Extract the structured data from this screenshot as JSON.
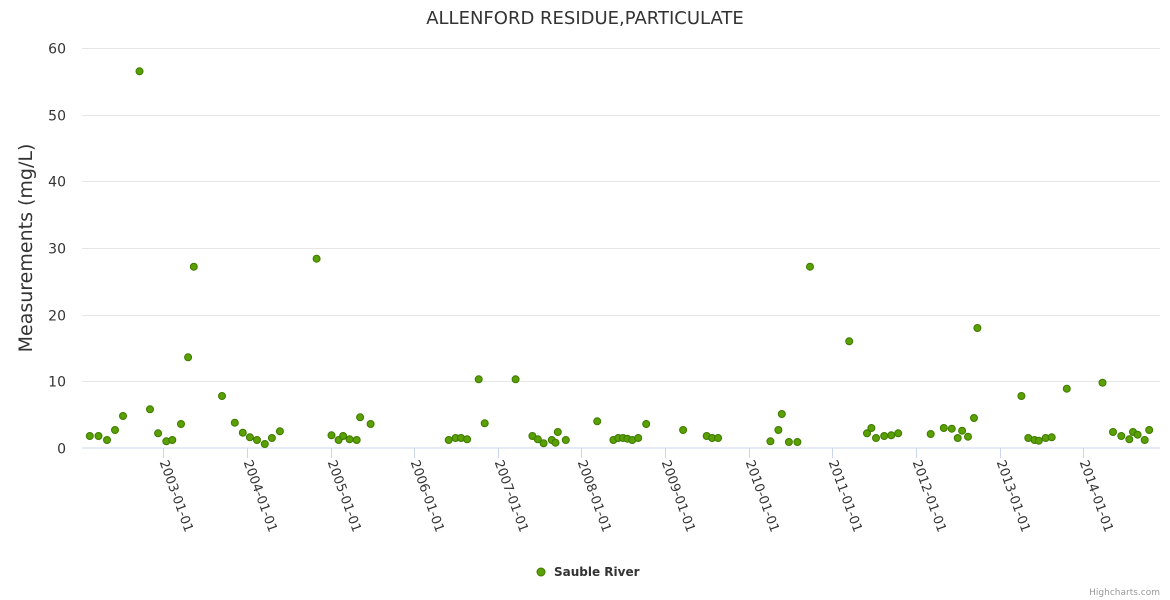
{
  "chart_data": {
    "type": "scatter",
    "title": "ALLENFORD RESIDUE,PARTICULATE",
    "xlabel": "",
    "ylabel": "Measurements (mg/L)",
    "ylim": [
      0,
      60
    ],
    "yticks": [
      0,
      10,
      20,
      30,
      40,
      50,
      60
    ],
    "xlim": [
      "2002-01-12",
      "2014-12-01"
    ],
    "xticks": [
      "2003-01-01",
      "2004-01-01",
      "2005-01-01",
      "2006-01-01",
      "2007-01-01",
      "2008-01-01",
      "2009-01-01",
      "2010-01-01",
      "2011-01-01",
      "2012-01-01",
      "2013-01-01",
      "2014-01-01"
    ],
    "series": [
      {
        "name": "Sauble River",
        "color": "#5aa000",
        "points": [
          [
            "2002-02-15",
            1.8
          ],
          [
            "2002-03-25",
            1.8
          ],
          [
            "2002-05-01",
            1.2
          ],
          [
            "2002-06-05",
            2.7
          ],
          [
            "2002-07-10",
            4.8
          ],
          [
            "2002-09-20",
            56.5
          ],
          [
            "2002-11-05",
            5.8
          ],
          [
            "2002-12-10",
            2.2
          ],
          [
            "2003-01-15",
            1.0
          ],
          [
            "2003-02-10",
            1.2
          ],
          [
            "2003-03-20",
            3.6
          ],
          [
            "2003-04-20",
            13.6
          ],
          [
            "2003-05-15",
            27.2
          ],
          [
            "2003-09-15",
            7.8
          ],
          [
            "2003-11-10",
            3.8
          ],
          [
            "2003-12-15",
            2.3
          ],
          [
            "2004-01-15",
            1.6
          ],
          [
            "2004-02-15",
            1.2
          ],
          [
            "2004-03-20",
            0.6
          ],
          [
            "2004-04-20",
            1.5
          ],
          [
            "2004-05-25",
            2.5
          ],
          [
            "2004-11-01",
            28.4
          ],
          [
            "2005-01-05",
            1.9
          ],
          [
            "2005-02-05",
            1.2
          ],
          [
            "2005-02-25",
            1.8
          ],
          [
            "2005-03-25",
            1.3
          ],
          [
            "2005-04-25",
            1.2
          ],
          [
            "2005-05-10",
            4.6
          ],
          [
            "2005-06-25",
            3.6
          ],
          [
            "2006-06-01",
            1.2
          ],
          [
            "2006-07-01",
            1.5
          ],
          [
            "2006-07-25",
            1.5
          ],
          [
            "2006-08-20",
            1.3
          ],
          [
            "2006-10-10",
            10.3
          ],
          [
            "2006-11-05",
            3.7
          ],
          [
            "2007-03-20",
            10.3
          ],
          [
            "2007-06-01",
            1.8
          ],
          [
            "2007-06-25",
            1.3
          ],
          [
            "2007-07-20",
            0.7
          ],
          [
            "2007-08-25",
            1.2
          ],
          [
            "2007-09-10",
            0.8
          ],
          [
            "2007-09-20",
            2.4
          ],
          [
            "2007-10-25",
            1.2
          ],
          [
            "2008-03-10",
            4.0
          ],
          [
            "2008-05-20",
            1.2
          ],
          [
            "2008-06-10",
            1.5
          ],
          [
            "2008-07-01",
            1.5
          ],
          [
            "2008-07-20",
            1.4
          ],
          [
            "2008-08-10",
            1.2
          ],
          [
            "2008-09-05",
            1.5
          ],
          [
            "2008-10-10",
            3.6
          ],
          [
            "2009-03-20",
            2.7
          ],
          [
            "2009-07-01",
            1.8
          ],
          [
            "2009-07-25",
            1.5
          ],
          [
            "2009-08-20",
            1.5
          ],
          [
            "2010-04-05",
            1.0
          ],
          [
            "2010-05-10",
            2.7
          ],
          [
            "2010-05-25",
            5.1
          ],
          [
            "2010-06-25",
            0.9
          ],
          [
            "2010-08-01",
            0.9
          ],
          [
            "2010-09-25",
            27.2
          ],
          [
            "2011-03-15",
            16.0
          ],
          [
            "2011-06-01",
            2.2
          ],
          [
            "2011-06-20",
            3.0
          ],
          [
            "2011-07-10",
            1.5
          ],
          [
            "2011-08-15",
            1.8
          ],
          [
            "2011-09-15",
            1.9
          ],
          [
            "2011-10-15",
            2.2
          ],
          [
            "2012-03-05",
            2.1
          ],
          [
            "2012-05-01",
            3.0
          ],
          [
            "2012-06-05",
            2.9
          ],
          [
            "2012-07-01",
            1.5
          ],
          [
            "2012-07-20",
            2.6
          ],
          [
            "2012-08-15",
            1.7
          ],
          [
            "2012-09-10",
            4.5
          ],
          [
            "2012-09-25",
            18.0
          ],
          [
            "2013-04-05",
            7.8
          ],
          [
            "2013-05-05",
            1.5
          ],
          [
            "2013-06-01",
            1.2
          ],
          [
            "2013-06-20",
            1.1
          ],
          [
            "2013-07-20",
            1.5
          ],
          [
            "2013-08-15",
            1.6
          ],
          [
            "2013-10-20",
            8.9
          ],
          [
            "2014-03-25",
            9.8
          ],
          [
            "2014-05-10",
            2.4
          ],
          [
            "2014-06-15",
            1.8
          ],
          [
            "2014-07-20",
            1.3
          ],
          [
            "2014-08-05",
            2.4
          ],
          [
            "2014-08-25",
            2.0
          ],
          [
            "2014-09-25",
            1.2
          ],
          [
            "2014-10-15",
            2.7
          ]
        ]
      }
    ],
    "legend": "bottom-center"
  },
  "credits": "Highcharts.com"
}
